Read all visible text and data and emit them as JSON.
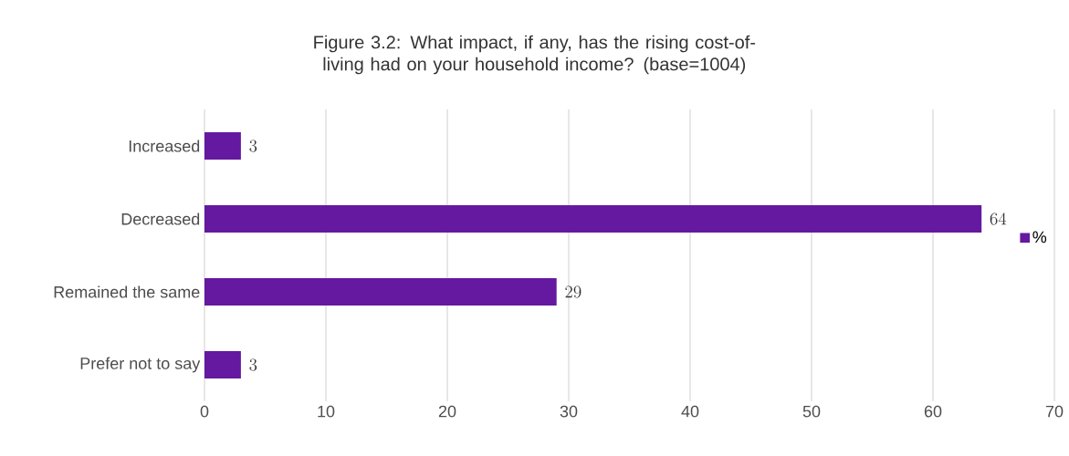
{
  "chart_data": {
    "type": "bar",
    "orientation": "horizontal",
    "title": "Figure 3.2: What impact, if any, has the rising cost-of-living had on your household income? (base=1004)",
    "categories": [
      "Increased",
      "Decreased",
      "Remained the same",
      "Prefer not to say"
    ],
    "series": [
      {
        "name": "%",
        "color": "#6419a0",
        "values": [
          3,
          64,
          29,
          3
        ]
      }
    ],
    "xlim": [
      0,
      70
    ],
    "xticks": [
      0,
      10,
      20,
      30,
      40,
      50,
      60,
      70
    ],
    "grid": "x",
    "legend": "right",
    "data_labels": true
  }
}
